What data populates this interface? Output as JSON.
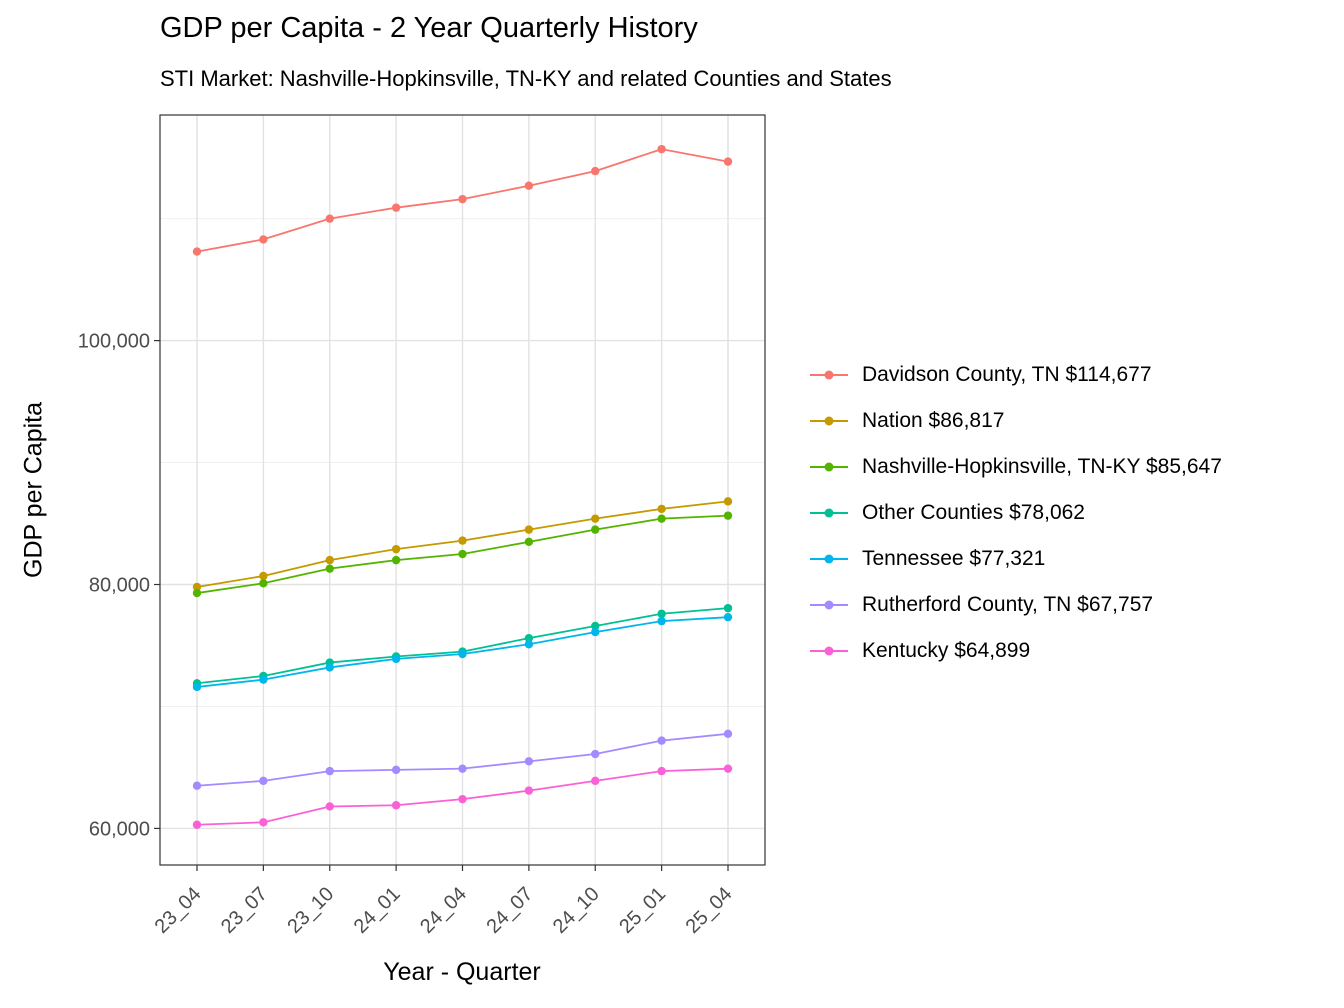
{
  "title": "GDP per Capita - 2 Year Quarterly History",
  "subtitle": "STI Market: Nashville-Hopkinsville, TN-KY and related Counties and States",
  "chart_data": {
    "type": "line",
    "title": "GDP per Capita - 2 Year Quarterly History",
    "subtitle": "STI Market: Nashville-Hopkinsville, TN-KY and related Counties and States",
    "xlabel": "Year - Quarter",
    "ylabel": "GDP per Capita",
    "categories": [
      "23_04",
      "23_07",
      "23_10",
      "24_01",
      "24_04",
      "24_07",
      "24_10",
      "25_01",
      "25_04"
    ],
    "ylim": [
      57000,
      118500
    ],
    "yticks": [
      {
        "value": 60000,
        "label": "60,000"
      },
      {
        "value": 80000,
        "label": "80,000"
      },
      {
        "value": 100000,
        "label": "100,000"
      }
    ],
    "yticks_minor": [
      70000,
      90000,
      110000
    ],
    "grid": true,
    "legend_position": "right",
    "series": [
      {
        "name": "Davidson County, TN $114,677",
        "color": "#F8766D",
        "values": [
          107300,
          108300,
          110000,
          110900,
          111600,
          112700,
          113900,
          115700,
          114677
        ]
      },
      {
        "name": "Nation $86,817",
        "color": "#C49A00",
        "values": [
          79800,
          80700,
          82000,
          82900,
          83600,
          84500,
          85400,
          86200,
          86817
        ]
      },
      {
        "name": "Nashville-Hopkinsville, TN-KY $85,647",
        "color": "#53B400",
        "values": [
          79300,
          80100,
          81300,
          82000,
          82500,
          83500,
          84500,
          85400,
          85647
        ]
      },
      {
        "name": "Other Counties $78,062",
        "color": "#00C094",
        "values": [
          71900,
          72500,
          73600,
          74100,
          74500,
          75600,
          76600,
          77600,
          78062
        ]
      },
      {
        "name": "Tennessee $77,321",
        "color": "#00B6EB",
        "values": [
          71600,
          72200,
          73200,
          73900,
          74300,
          75100,
          76100,
          77000,
          77321
        ]
      },
      {
        "name": "Rutherford County, TN $67,757",
        "color": "#A58AFF",
        "values": [
          63500,
          63900,
          64700,
          64800,
          64900,
          65500,
          66100,
          67200,
          67757
        ]
      },
      {
        "name": "Kentucky $64,899",
        "color": "#FB61D7",
        "values": [
          60300,
          60500,
          61800,
          61900,
          62400,
          63100,
          63900,
          64700,
          64899
        ]
      }
    ]
  }
}
